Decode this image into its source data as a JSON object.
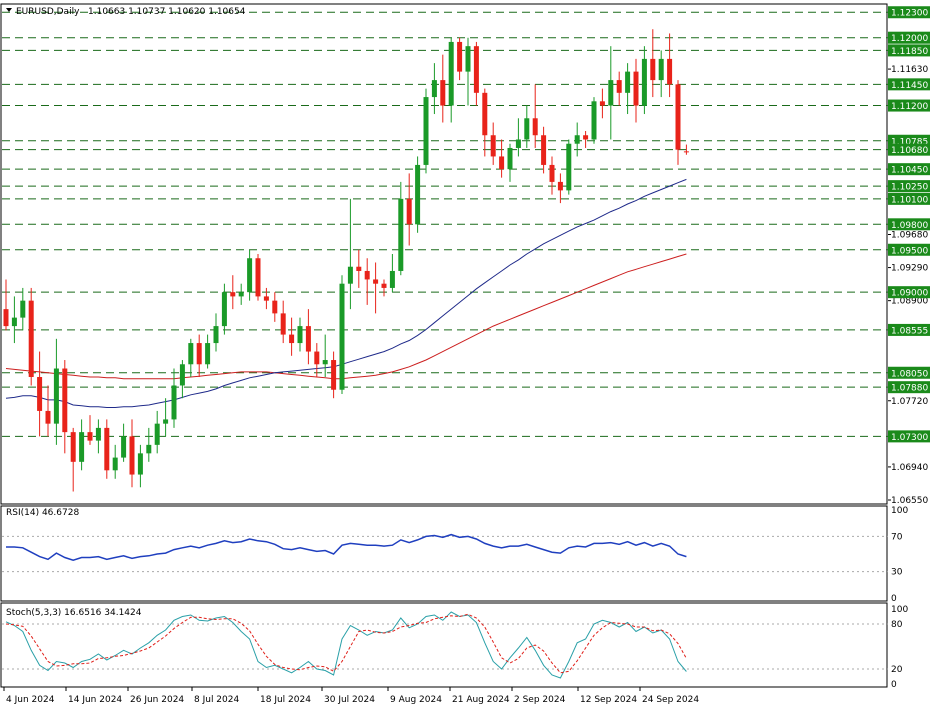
{
  "header": {
    "symbol": "EURUSD,Daily",
    "ohlc": "1.10663 1.10737 1.10620 1.10654"
  },
  "colors": {
    "bull": "#1a9a28",
    "bear": "#e8231a",
    "ma_fast": "#1f2a8a",
    "ma_slow": "#cc1f1f",
    "level_line": "#1a6a1a",
    "level_box": "#1a8a1a",
    "osc_line": "#1f3fbf",
    "stoch_main": "#2aa0a8",
    "stoch_signal": "#e0201a"
  },
  "chart_data": [
    {
      "type": "candlestick",
      "title": "EURUSD,Daily",
      "ylim": [
        1.0655,
        1.1235
      ],
      "x_ticks": [
        "4 Jun 2024",
        "14 Jun 2024",
        "26 Jun 2024",
        "8 Jul 2024",
        "18 Jul 2024",
        "30 Jul 2024",
        "9 Aug 2024",
        "21 Aug 2024",
        "2 Sep 2024",
        "12 Sep 2024",
        "24 Sep 2024"
      ],
      "y_ticks": [
        "1.12300",
        "1.12000",
        "1.11850",
        "1.11630",
        "1.11450",
        "1.11200",
        "1.10785",
        "1.10680",
        "1.10450",
        "1.10250",
        "1.10100",
        "1.09800",
        "1.09680",
        "1.09500",
        "1.09290",
        "1.09000",
        "1.08900",
        "1.08555",
        "1.08050",
        "1.07880",
        "1.07720",
        "1.07300",
        "1.06940",
        "1.06550"
      ],
      "levels": [
        "1.12300",
        "1.12000",
        "1.11850",
        "1.11450",
        "1.11200",
        "1.10785",
        "1.10680",
        "1.10450",
        "1.10250",
        "1.10100",
        "1.09800",
        "1.09500",
        "1.09000",
        "1.08555",
        "1.08050",
        "1.07880",
        "1.07300"
      ],
      "current_price": 1.10654,
      "ohlc": [
        [
          1.088,
          1.0915,
          1.0855,
          1.086
        ],
        [
          1.086,
          1.0895,
          1.084,
          1.087
        ],
        [
          1.087,
          1.0905,
          1.0855,
          1.089
        ],
        [
          1.089,
          1.0905,
          1.079,
          1.08
        ],
        [
          1.08,
          1.083,
          1.073,
          1.076
        ],
        [
          1.076,
          1.079,
          1.073,
          1.0745
        ],
        [
          1.0745,
          1.0845,
          1.072,
          1.081
        ],
        [
          1.081,
          1.082,
          1.071,
          1.0735
        ],
        [
          1.0735,
          1.074,
          1.0665,
          1.07
        ],
        [
          1.07,
          1.075,
          1.069,
          1.0735
        ],
        [
          1.0735,
          1.0755,
          1.072,
          1.0725
        ],
        [
          1.0725,
          1.075,
          1.071,
          1.074
        ],
        [
          1.074,
          1.075,
          1.068,
          1.069
        ],
        [
          1.069,
          1.072,
          1.068,
          1.0705
        ],
        [
          1.0705,
          1.0745,
          1.07,
          1.073
        ],
        [
          1.073,
          1.075,
          1.067,
          1.0685
        ],
        [
          1.0685,
          1.072,
          1.067,
          1.071
        ],
        [
          1.071,
          1.074,
          1.07,
          1.072
        ],
        [
          1.072,
          1.076,
          1.071,
          1.0745
        ],
        [
          1.0745,
          1.0775,
          1.073,
          1.075
        ],
        [
          1.075,
          1.081,
          1.074,
          1.079
        ],
        [
          1.079,
          1.082,
          1.0775,
          1.0815
        ],
        [
          1.0815,
          1.0845,
          1.08,
          1.084
        ],
        [
          1.084,
          1.085,
          1.08,
          1.0815
        ],
        [
          1.0815,
          1.085,
          1.081,
          1.084
        ],
        [
          1.084,
          1.0875,
          1.083,
          1.086
        ],
        [
          1.086,
          1.091,
          1.085,
          1.09
        ],
        [
          1.09,
          1.092,
          1.088,
          1.0895
        ],
        [
          1.0895,
          1.091,
          1.0885,
          1.09
        ],
        [
          1.09,
          1.095,
          1.089,
          1.094
        ],
        [
          1.094,
          1.0945,
          1.089,
          1.0895
        ],
        [
          1.0895,
          1.0905,
          1.088,
          1.089
        ],
        [
          1.089,
          1.09,
          1.0865,
          1.0875
        ],
        [
          1.0875,
          1.089,
          1.084,
          1.085
        ],
        [
          1.085,
          1.087,
          1.0825,
          1.084
        ],
        [
          1.084,
          1.087,
          1.083,
          1.086
        ],
        [
          1.086,
          1.088,
          1.0815,
          1.083
        ],
        [
          1.083,
          1.084,
          1.08,
          1.0815
        ],
        [
          1.0815,
          1.085,
          1.08,
          1.082
        ],
        [
          1.082,
          1.083,
          1.0775,
          1.0785
        ],
        [
          1.0785,
          1.092,
          1.078,
          1.091
        ],
        [
          1.091,
          1.101,
          1.088,
          1.093
        ],
        [
          1.093,
          1.095,
          1.0905,
          1.0925
        ],
        [
          1.0925,
          1.094,
          1.0885,
          1.0915
        ],
        [
          1.0915,
          1.0935,
          1.0875,
          1.091
        ],
        [
          1.091,
          1.0915,
          1.0895,
          1.0905
        ],
        [
          1.0905,
          1.0945,
          1.09,
          1.0925
        ],
        [
          1.0925,
          1.103,
          1.092,
          1.101
        ],
        [
          1.101,
          1.104,
          1.0955,
          1.098
        ],
        [
          1.098,
          1.106,
          1.097,
          1.105
        ],
        [
          1.105,
          1.114,
          1.104,
          1.113
        ],
        [
          1.113,
          1.117,
          1.111,
          1.115
        ],
        [
          1.115,
          1.118,
          1.11,
          1.112
        ],
        [
          1.112,
          1.12,
          1.11,
          1.1195
        ],
        [
          1.1195,
          1.12,
          1.115,
          1.116
        ],
        [
          1.116,
          1.12,
          1.112,
          1.119
        ],
        [
          1.119,
          1.1195,
          1.112,
          1.1135
        ],
        [
          1.1135,
          1.114,
          1.106,
          1.1085
        ],
        [
          1.1085,
          1.11,
          1.105,
          1.106
        ],
        [
          1.106,
          1.108,
          1.1035,
          1.1045
        ],
        [
          1.1045,
          1.1075,
          1.103,
          1.107
        ],
        [
          1.107,
          1.1105,
          1.106,
          1.108
        ],
        [
          1.108,
          1.112,
          1.107,
          1.1105
        ],
        [
          1.1105,
          1.1145,
          1.107,
          1.1085
        ],
        [
          1.1085,
          1.1095,
          1.104,
          1.105
        ],
        [
          1.105,
          1.106,
          1.1015,
          1.103
        ],
        [
          1.103,
          1.104,
          1.1005,
          1.102
        ],
        [
          1.102,
          1.108,
          1.1015,
          1.1075
        ],
        [
          1.1075,
          1.11,
          1.106,
          1.1085
        ],
        [
          1.1085,
          1.109,
          1.107,
          1.108
        ],
        [
          1.108,
          1.113,
          1.1075,
          1.1125
        ],
        [
          1.1125,
          1.114,
          1.1105,
          1.112
        ],
        [
          1.112,
          1.119,
          1.108,
          1.115
        ],
        [
          1.115,
          1.116,
          1.112,
          1.1135
        ],
        [
          1.1135,
          1.117,
          1.111,
          1.116
        ],
        [
          1.116,
          1.1175,
          1.11,
          1.112
        ],
        [
          1.112,
          1.119,
          1.111,
          1.1175
        ],
        [
          1.1175,
          1.121,
          1.113,
          1.115
        ],
        [
          1.115,
          1.1185,
          1.113,
          1.1175
        ],
        [
          1.1175,
          1.1205,
          1.113,
          1.1145
        ],
        [
          1.1145,
          1.115,
          1.105,
          1.1068
        ],
        [
          1.1066,
          1.1074,
          1.1062,
          1.10654
        ]
      ],
      "ma_fast": [
        1.0775,
        1.0776,
        1.0778,
        1.0778,
        1.0776,
        1.0773,
        1.0773,
        1.0771,
        1.0767,
        1.0766,
        1.0765,
        1.0765,
        1.0764,
        1.0764,
        1.0765,
        1.0765,
        1.0766,
        1.0767,
        1.0769,
        1.0771,
        1.0773,
        1.0776,
        1.0779,
        1.0781,
        1.0783,
        1.0786,
        1.079,
        1.0793,
        1.0796,
        1.0799,
        1.0801,
        1.0803,
        1.0805,
        1.0806,
        1.0807,
        1.0808,
        1.0809,
        1.081,
        1.0811,
        1.0812,
        1.0815,
        1.0818,
        1.0821,
        1.0824,
        1.0827,
        1.083,
        1.0834,
        1.0839,
        1.0843,
        1.0849,
        1.0856,
        1.0864,
        1.0872,
        1.088,
        1.0888,
        1.0896,
        1.0904,
        1.0911,
        1.0918,
        1.0925,
        1.0932,
        1.0938,
        1.0945,
        1.0951,
        1.0957,
        1.0962,
        1.0967,
        1.0972,
        1.0977,
        1.0981,
        1.0985,
        1.099,
        1.0995,
        1.0999,
        1.1004,
        1.1008,
        1.1013,
        1.1017,
        1.1021,
        1.1025,
        1.1029,
        1.1033
      ],
      "ma_slow": [
        1.081,
        1.0809,
        1.0808,
        1.0807,
        1.0806,
        1.0805,
        1.0804,
        1.0803,
        1.0802,
        1.0801,
        1.08,
        1.08,
        1.0799,
        1.0799,
        1.0798,
        1.0798,
        1.0798,
        1.0798,
        1.0798,
        1.0798,
        1.0798,
        1.0799,
        1.08,
        1.0801,
        1.0802,
        1.0803,
        1.0804,
        1.0805,
        1.0806,
        1.0806,
        1.0806,
        1.0806,
        1.0805,
        1.0804,
        1.0803,
        1.0802,
        1.0801,
        1.08,
        1.0799,
        1.0798,
        1.0798,
        1.0799,
        1.08,
        1.0801,
        1.0802,
        1.0804,
        1.0806,
        1.0809,
        1.0812,
        1.0816,
        1.082,
        1.0825,
        1.083,
        1.0835,
        1.084,
        1.0845,
        1.085,
        1.0855,
        1.086,
        1.0864,
        1.0868,
        1.0872,
        1.0876,
        1.088,
        1.0884,
        1.0888,
        1.0892,
        1.0896,
        1.09,
        1.0904,
        1.0908,
        1.0912,
        1.0916,
        1.092,
        1.0924,
        1.0927,
        1.093,
        1.0933,
        1.0936,
        1.0939,
        1.0942,
        1.0945
      ]
    },
    {
      "type": "line",
      "title": "RSI(14) 46.6728",
      "ylim": [
        0,
        100
      ],
      "y_ticks": [
        "100",
        "70",
        "30",
        "0"
      ],
      "levels": [
        70,
        30
      ],
      "values": [
        58,
        58,
        57,
        52,
        47,
        44,
        51,
        46,
        43,
        46,
        46,
        47,
        44,
        46,
        48,
        45,
        47,
        48,
        50,
        51,
        55,
        57,
        59,
        57,
        60,
        62,
        65,
        63,
        64,
        67,
        65,
        64,
        61,
        56,
        55,
        57,
        55,
        53,
        54,
        50,
        60,
        62,
        61,
        60,
        60,
        59,
        60,
        66,
        63,
        66,
        70,
        71,
        69,
        72,
        69,
        70,
        67,
        62,
        59,
        57,
        59,
        59,
        61,
        58,
        55,
        52,
        51,
        57,
        59,
        58,
        62,
        62,
        63,
        61,
        64,
        60,
        63,
        59,
        62,
        59,
        50,
        47
      ]
    },
    {
      "type": "line",
      "title": "Stoch(5,3,3) 16.6516 34.1424",
      "ylim": [
        0,
        100
      ],
      "y_ticks": [
        "100",
        "80",
        "20",
        "0"
      ],
      "levels": [
        80,
        20
      ],
      "series": [
        {
          "values": [
            83,
            78,
            70,
            45,
            25,
            18,
            30,
            28,
            22,
            30,
            33,
            40,
            32,
            38,
            45,
            40,
            48,
            55,
            65,
            72,
            85,
            90,
            92,
            85,
            84,
            88,
            90,
            82,
            70,
            60,
            30,
            22,
            25,
            20,
            15,
            22,
            30,
            20,
            18,
            12,
            60,
            78,
            72,
            65,
            70,
            68,
            72,
            88,
            75,
            80,
            90,
            92,
            85,
            96,
            90,
            92,
            82,
            55,
            30,
            20,
            35,
            48,
            62,
            45,
            25,
            12,
            8,
            30,
            55,
            60,
            80,
            85,
            82,
            76,
            82,
            70,
            76,
            68,
            72,
            60,
            30,
            16.65
          ]
        },
        {
          "values": [
            80,
            79,
            77,
            64,
            47,
            30,
            24,
            25,
            27,
            27,
            28,
            34,
            35,
            37,
            38,
            41,
            44,
            48,
            56,
            64,
            74,
            82,
            89,
            89,
            87,
            86,
            87,
            87,
            81,
            71,
            53,
            37,
            26,
            22,
            20,
            19,
            22,
            24,
            23,
            17,
            30,
            50,
            70,
            72,
            69,
            68,
            70,
            76,
            78,
            81,
            82,
            87,
            89,
            91,
            90,
            93,
            88,
            76,
            56,
            35,
            28,
            34,
            48,
            52,
            44,
            28,
            15,
            17,
            31,
            48,
            65,
            75,
            82,
            81,
            80,
            76,
            76,
            71,
            72,
            67,
            54,
            34.14
          ]
        }
      ]
    }
  ]
}
